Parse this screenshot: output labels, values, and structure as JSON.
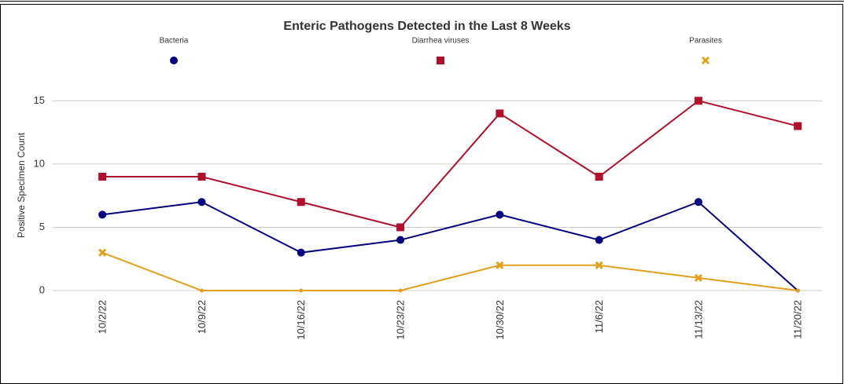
{
  "chart_data": {
    "type": "line",
    "title": "Enteric Pathogens Detected in the Last 8 Weeks",
    "y_label": "Positive Specimen Count",
    "categories": [
      "10/2/22",
      "10/9/22",
      "10/16/22",
      "10/23/22",
      "10/30/22",
      "11/6/22",
      "11/13/22",
      "11/20/22"
    ],
    "series": [
      {
        "name": "Bacteria",
        "color": "#000080",
        "marker": "circle",
        "values": [
          6,
          7,
          3,
          4,
          6,
          4,
          7,
          0
        ]
      },
      {
        "name": "Diarrhea viruses",
        "color": "#b0102a",
        "marker": "square",
        "values": [
          9,
          9,
          7,
          5,
          14,
          9,
          15,
          13
        ]
      },
      {
        "name": "Parasites",
        "color": "#e29f1a",
        "marker": "cross",
        "values": [
          3,
          0,
          0,
          0,
          2,
          2,
          1,
          0
        ]
      }
    ],
    "ylim": [
      0,
      18
    ],
    "yticks": [
      0,
      5,
      10,
      15
    ],
    "grid": true,
    "legend": "top"
  }
}
